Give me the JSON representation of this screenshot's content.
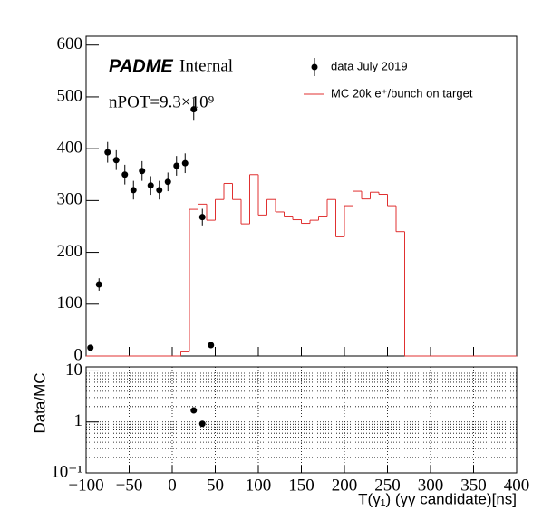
{
  "chart_data": [
    {
      "type": "histogram",
      "annotations": [
        "PADME",
        "Internal",
        "nPOT=9.3×10⁹"
      ],
      "xlim": [
        -100,
        400
      ],
      "xticks": [
        -100,
        -50,
        0,
        50,
        100,
        150,
        200,
        250,
        300,
        350,
        400
      ],
      "ylim": [
        0,
        617
      ],
      "yticks": [
        0,
        100,
        200,
        300,
        400,
        500,
        600
      ],
      "bins": [
        -100,
        -90,
        -80,
        -70,
        -60,
        -50,
        -40,
        -30,
        -20,
        -10,
        0,
        10,
        20,
        30,
        40,
        50,
        60,
        70,
        80,
        90,
        100,
        110,
        120,
        130,
        140,
        150,
        160,
        170,
        180,
        190,
        200,
        210,
        220,
        230,
        240,
        250,
        260,
        270,
        280,
        290,
        300,
        310,
        320,
        330,
        340,
        350,
        360,
        370,
        380,
        390,
        400
      ],
      "series": [
        {
          "name": "MC 20k e⁺/bunch on target",
          "color": "#e03030",
          "counts": [
            0,
            0,
            0,
            0,
            0,
            0,
            0,
            0,
            0,
            0,
            0,
            8,
            283,
            293,
            262,
            302,
            333,
            302,
            255,
            350,
            272,
            302,
            278,
            270,
            263,
            256,
            262,
            270,
            302,
            230,
            290,
            318,
            303,
            316,
            312,
            290,
            240,
            0,
            0,
            0,
            0,
            0,
            0,
            0,
            0,
            0,
            0,
            0,
            0,
            0
          ]
        }
      ],
      "points": {
        "name": "data July 2019",
        "color": "#000000",
        "x": [
          -95,
          -85,
          -75,
          -65,
          -55,
          -45,
          -35,
          -25,
          -15,
          -5,
          5,
          15,
          25,
          35,
          45
        ],
        "values": [
          16,
          138,
          393,
          378,
          350,
          320,
          357,
          329,
          320,
          336,
          367,
          372,
          476,
          268,
          21
        ],
        "errors": [
          4,
          12,
          20,
          19,
          19,
          18,
          19,
          18,
          18,
          18,
          19,
          19,
          22,
          16,
          5
        ]
      }
    },
    {
      "type": "scatter",
      "y_label": "Data/MC",
      "x_label": "T(γ₁) (γγ candidate)[ns]",
      "xlim": [
        -100,
        400
      ],
      "xticks": [
        {
          "value": -100,
          "label": "−100"
        },
        {
          "value": -50,
          "label": "−50"
        },
        0,
        50,
        100,
        150,
        200,
        250,
        300,
        350,
        400
      ],
      "ylim": [
        0.1,
        12
      ],
      "log_y": true,
      "grid": true,
      "yticks": [
        {
          "value": 0.1,
          "label": "10⁻¹"
        },
        1,
        10
      ],
      "yminorticks": [
        0.2,
        0.3,
        0.4,
        0.5,
        0.6,
        0.7,
        0.8,
        0.9,
        2,
        3,
        4,
        5,
        6,
        7,
        8,
        9
      ],
      "x": [
        25,
        35
      ],
      "values": [
        1.68,
        0.92
      ],
      "color": "#000000"
    }
  ]
}
